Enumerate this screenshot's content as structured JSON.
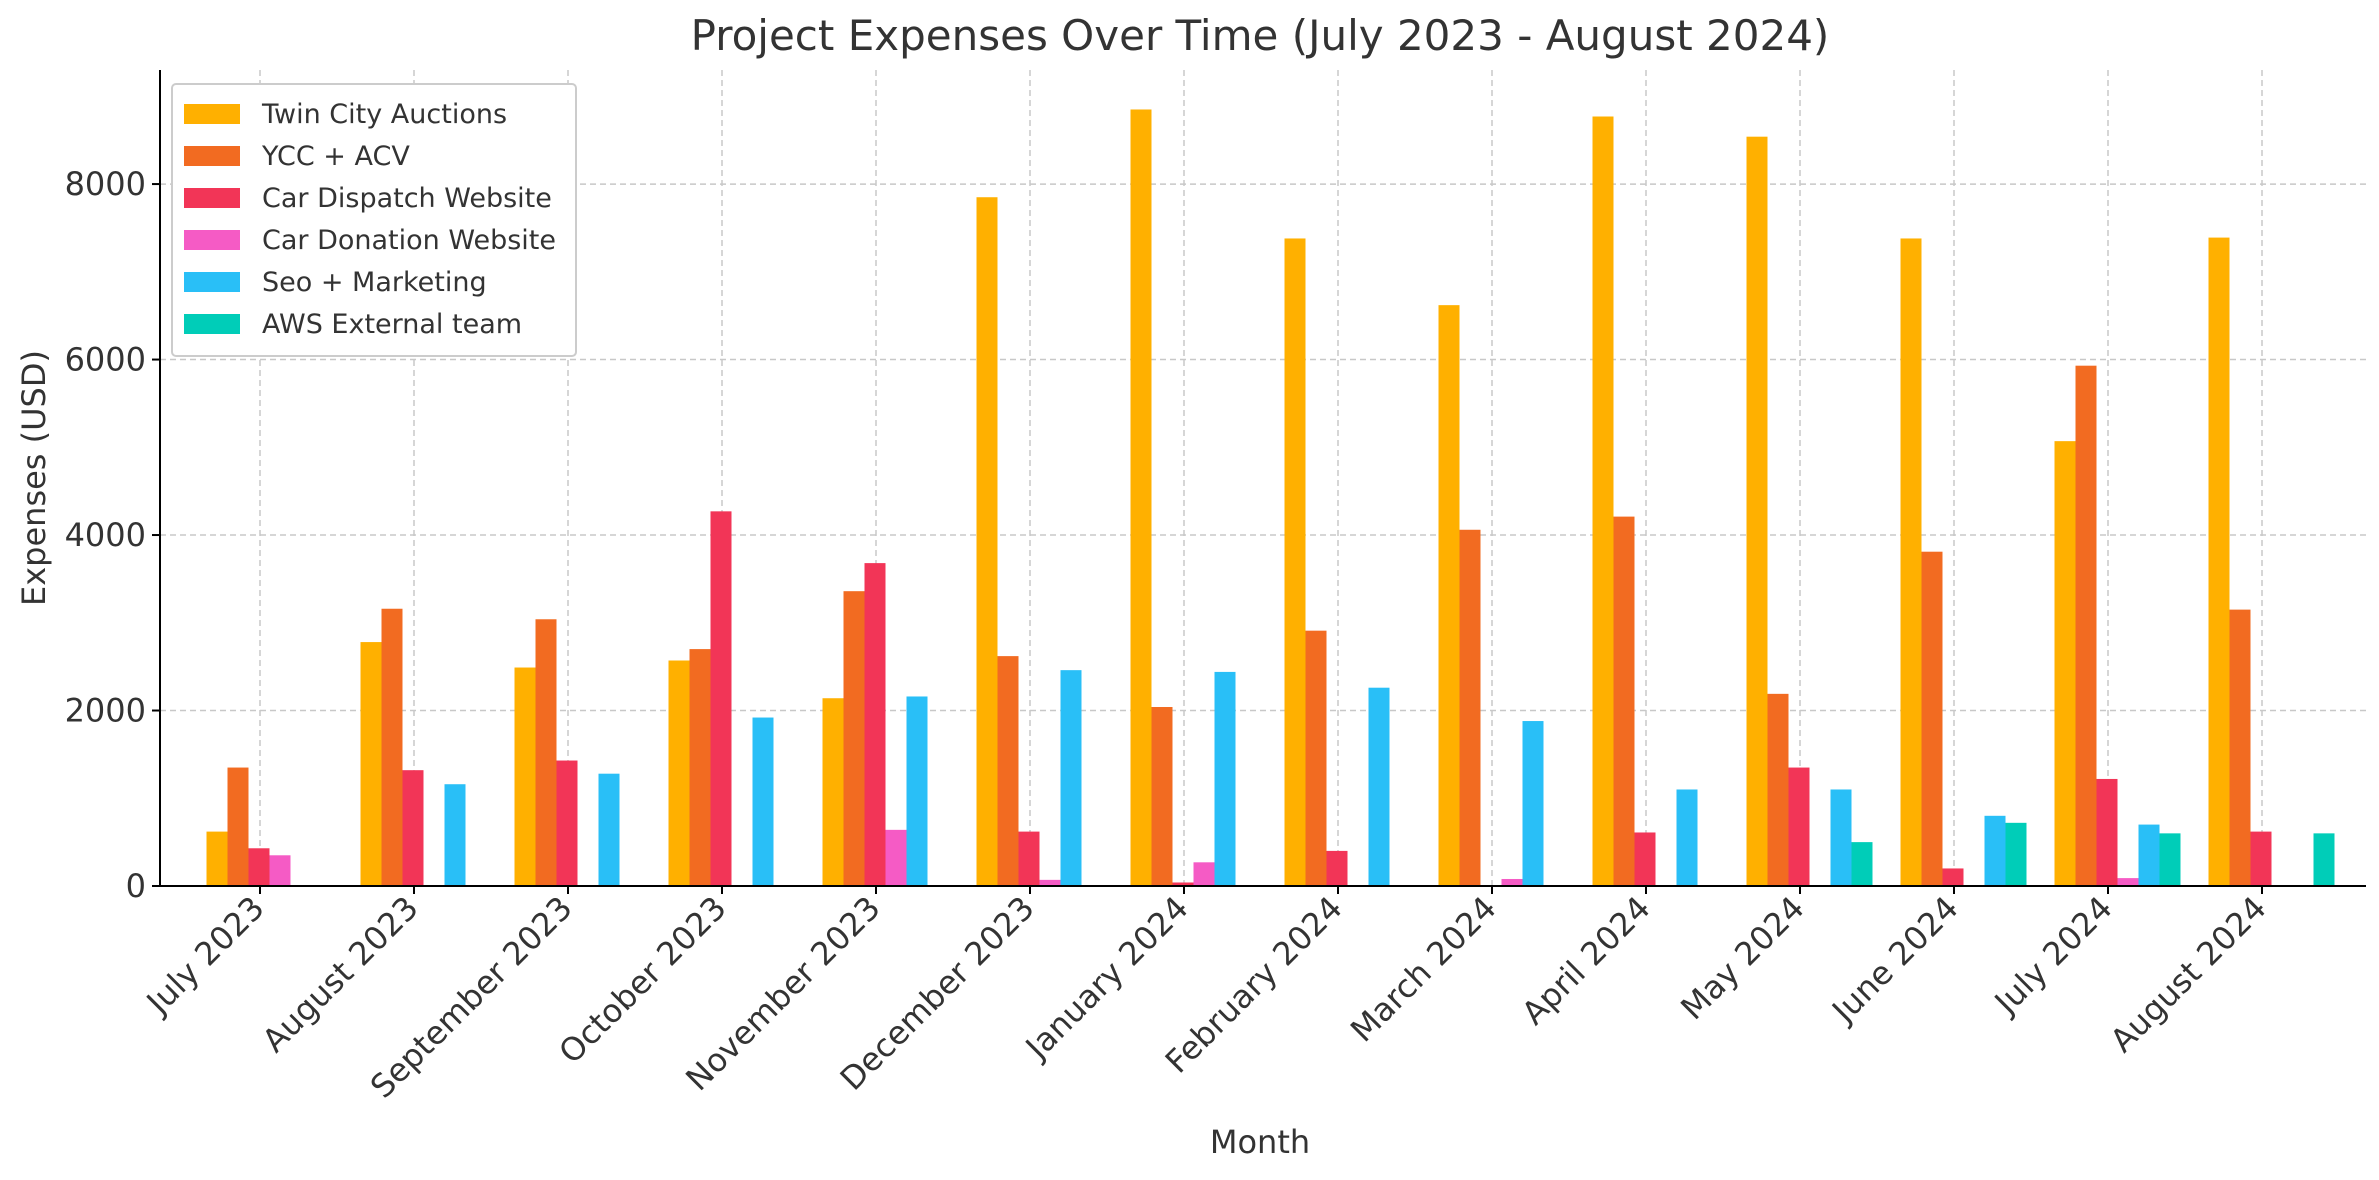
{
  "chart_data": {
    "type": "bar",
    "title": "Project Expenses Over Time (July 2023 - August 2024)",
    "xlabel": "Month",
    "ylabel": "Expenses (USD)",
    "ylim": [
      0,
      9300
    ],
    "yticks": [
      0,
      2000,
      4000,
      6000,
      8000
    ],
    "grid": true,
    "legend_position": "top-left",
    "categories": [
      "July 2023",
      "August 2023",
      "September 2023",
      "October 2023",
      "November 2023",
      "December 2023",
      "January 2024",
      "February 2024",
      "March 2024",
      "April 2024",
      "May 2024",
      "June 2024",
      "July 2024",
      "August 2024"
    ],
    "series": [
      {
        "name": "Twin City Auctions",
        "color": "#FFB000",
        "values": [
          620,
          2780,
          2490,
          2570,
          2140,
          7850,
          8850,
          7380,
          6620,
          8770,
          8540,
          7380,
          5070,
          7390
        ]
      },
      {
        "name": "YCC + ACV",
        "color": "#F26B21",
        "values": [
          1350,
          3160,
          3040,
          2700,
          3360,
          2620,
          2040,
          2910,
          4060,
          4210,
          2190,
          3810,
          5930,
          3150
        ]
      },
      {
        "name": "Car Dispatch Website",
        "color": "#F23557",
        "values": [
          430,
          1320,
          1430,
          4270,
          3680,
          620,
          40,
          400,
          0,
          610,
          1350,
          200,
          1220,
          620
        ]
      },
      {
        "name": "Car Donation Website",
        "color": "#F55BC5",
        "values": [
          350,
          0,
          0,
          0,
          640,
          70,
          270,
          0,
          80,
          0,
          0,
          0,
          90,
          0
        ]
      },
      {
        "name": "Seo + Marketing",
        "color": "#29BFF7",
        "values": [
          0,
          1160,
          1280,
          1920,
          2160,
          2460,
          2440,
          2260,
          1880,
          1100,
          1100,
          800,
          700,
          0
        ]
      },
      {
        "name": "AWS External team",
        "color": "#00CDB8",
        "values": [
          0,
          0,
          0,
          0,
          0,
          0,
          0,
          0,
          0,
          0,
          500,
          720,
          600,
          600
        ]
      }
    ]
  }
}
